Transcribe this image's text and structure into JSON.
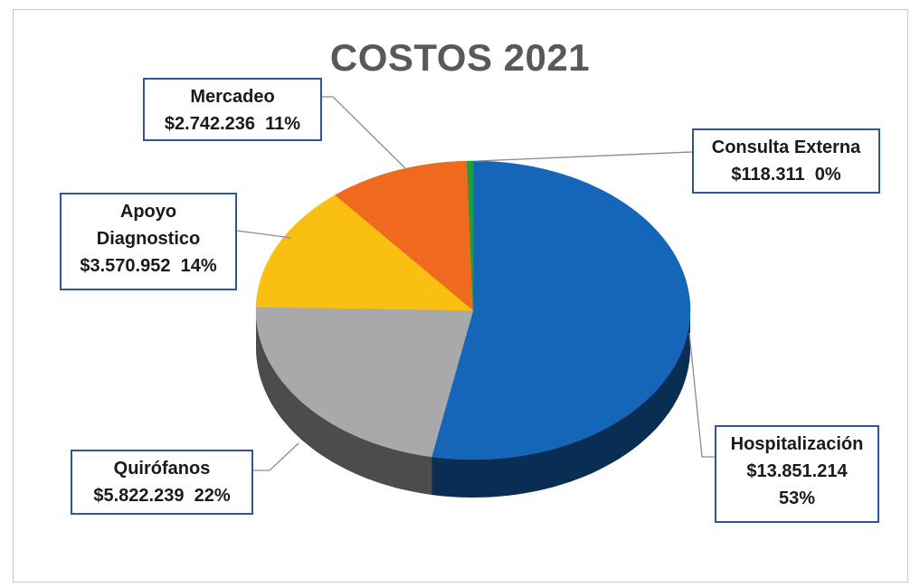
{
  "chart_data": {
    "type": "pie",
    "title": "COSTOS 2021",
    "slices": [
      {
        "label": "Hospitalización",
        "value_text": "$13.851.214",
        "pct_text": "53%",
        "value": 13851214,
        "percent": 53,
        "color": "#1565b8"
      },
      {
        "label": "Quirófanos",
        "value_text": "$5.822.239",
        "pct_text": "22%",
        "value": 5822239,
        "percent": 22,
        "color": "#a9a9a9"
      },
      {
        "label": "Apoyo Diagnostico",
        "label_line1": "Apoyo",
        "label_line2": "Diagnostico",
        "value_text": "$3.570.952",
        "pct_text": "14%",
        "value": 3570952,
        "percent": 14,
        "color": "#f9c012"
      },
      {
        "label": "Mercadeo",
        "value_text": "$2.742.236",
        "pct_text": "11%",
        "value": 2742236,
        "percent": 11,
        "color": "#ef6a1e"
      },
      {
        "label": "Consulta Externa",
        "value_text": "$118.311",
        "pct_text": "0%",
        "value": 118311,
        "percent": 0,
        "color": "#1f9e3e"
      }
    ],
    "legend": "data callouts",
    "style": "3d-pie"
  }
}
